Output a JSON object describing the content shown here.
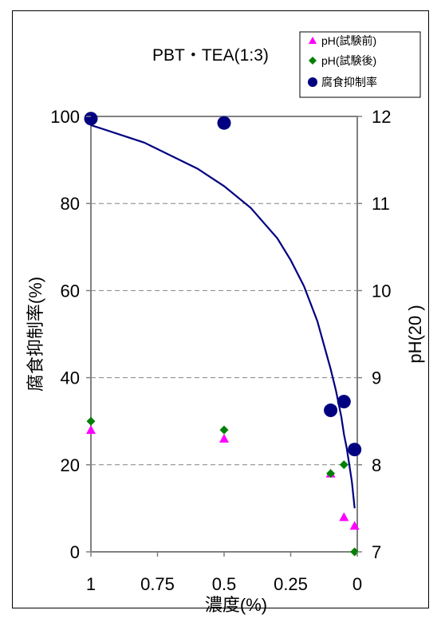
{
  "chart_data": {
    "type": "scatter",
    "title": "PBT・TEA(1:3)",
    "xlabel": "濃度(%)",
    "ylabel_left": "腐食抑制率(%)",
    "ylabel_right": "pH(20 )",
    "x_reversed": true,
    "xlim": [
      1,
      0
    ],
    "ylim_left": [
      0,
      100
    ],
    "ylim_right": [
      7,
      12
    ],
    "x_ticks": [
      "1",
      "0.75",
      "0.5",
      "0.25",
      "0"
    ],
    "x_tick_values": [
      1,
      0.75,
      0.5,
      0.25,
      0
    ],
    "y_ticks_left": [
      "0",
      "20",
      "40",
      "60",
      "80",
      "100"
    ],
    "y_tick_values_left": [
      0,
      20,
      40,
      60,
      80,
      100
    ],
    "y_ticks_right": [
      "7",
      "8",
      "9",
      "10",
      "11",
      "12"
    ],
    "y_tick_values_right": [
      7,
      8,
      9,
      10,
      11,
      12
    ],
    "grid": "horizontal dashed",
    "legend_position": "top-right",
    "series": [
      {
        "name": "pH(試験前)",
        "marker": "triangle",
        "color": "#ff00ff",
        "axis": "left",
        "x": [
          1,
          0.5,
          0.1,
          0.05,
          0.01
        ],
        "y": [
          28,
          26,
          18,
          8,
          6
        ]
      },
      {
        "name": "pH(試験後)",
        "marker": "diamond",
        "color": "#008000",
        "axis": "left",
        "x": [
          1,
          0.5,
          0.1,
          0.05,
          0.01
        ],
        "y": [
          30,
          28,
          18,
          20,
          0
        ]
      },
      {
        "name": "腐食抑制率",
        "marker": "circle",
        "color": "#000080",
        "axis": "left",
        "x": [
          1,
          0.5,
          0.1,
          0.05,
          0.01
        ],
        "y": [
          99.5,
          98.5,
          32.5,
          34.5,
          23.5
        ]
      }
    ],
    "trendline": {
      "color": "#000080",
      "x": [
        1,
        0.9,
        0.8,
        0.7,
        0.6,
        0.5,
        0.4,
        0.3,
        0.25,
        0.2,
        0.15,
        0.1,
        0.08,
        0.06,
        0.05,
        0.04,
        0.03,
        0.02,
        0.01
      ],
      "y": [
        98,
        96,
        94,
        91,
        88,
        84,
        79,
        72,
        67,
        61,
        53,
        42,
        37,
        31,
        27,
        24,
        20,
        16,
        10
      ]
    }
  }
}
